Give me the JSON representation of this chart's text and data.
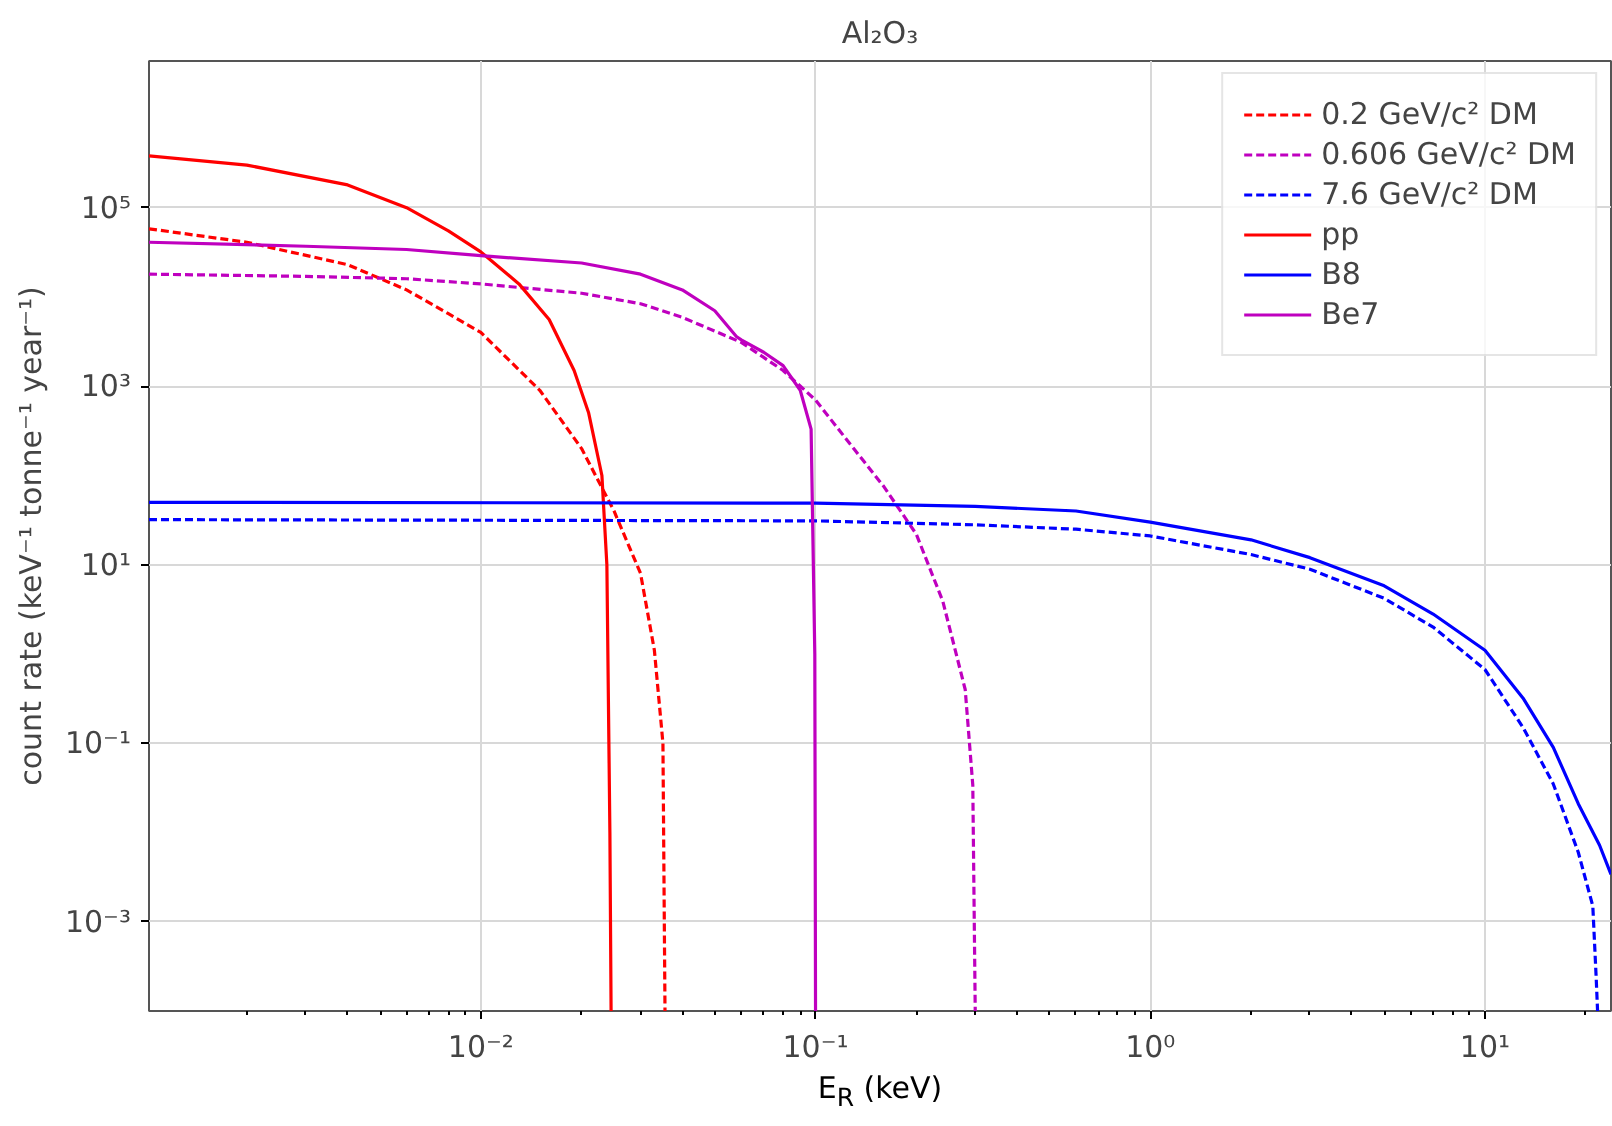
{
  "chart_data": {
    "type": "line",
    "title": "Al₂O₃",
    "xlabel": "E$_{R}$ (keV)",
    "ylabel": "count rate (keV⁻¹ tonne⁻¹ year⁻¹)",
    "log": "xy",
    "grid": true,
    "legend": "top right",
    "xlim": [
      0.00102,
      23.8
    ],
    "ylim": [
      0.0001,
      4400000
    ],
    "xticks": [
      {
        "value": 0.01,
        "label": "10⁻²"
      },
      {
        "value": 0.1,
        "label": "10⁻¹"
      },
      {
        "value": 1,
        "label": "10⁰"
      },
      {
        "value": 10,
        "label": "10¹"
      }
    ],
    "yticks": [
      {
        "value": 0.001,
        "label": "10⁻³"
      },
      {
        "value": 0.1,
        "label": "10⁻¹"
      },
      {
        "value": 10,
        "label": "10¹"
      },
      {
        "value": 1000,
        "label": "10³"
      },
      {
        "value": 100000,
        "label": "10⁵"
      }
    ],
    "series": [
      {
        "name": "0.2 GeV/c² DM",
        "color": "#ff0000",
        "line_style": "dashed",
        "x": [
          0.00102,
          0.002,
          0.004,
          0.006,
          0.008,
          0.01,
          0.015,
          0.02,
          0.025,
          0.03,
          0.033,
          0.035,
          0.0355
        ],
        "values": [
          58000,
          41000,
          23000,
          12000,
          6500,
          4000,
          900,
          200,
          40,
          8,
          1.1,
          0.1,
          0.0001
        ]
      },
      {
        "name": "0.606 GeV/c² DM",
        "color": "#bf00bf",
        "line_style": "dashed",
        "x": [
          0.00102,
          0.003,
          0.006,
          0.01,
          0.02,
          0.03,
          0.04,
          0.06,
          0.08,
          0.1,
          0.13,
          0.16,
          0.2,
          0.24,
          0.28,
          0.295,
          0.3
        ],
        "values": [
          18000,
          17000,
          16000,
          14000,
          11000,
          8400,
          5900,
          3100,
          1500,
          700,
          200,
          75,
          22,
          3.9,
          0.4,
          0.034,
          0.0001
        ]
      },
      {
        "name": "7.6 GeV/c² DM",
        "color": "#0000ff",
        "line_style": "dashed",
        "x": [
          0.00102,
          0.1,
          0.3,
          0.6,
          1,
          2,
          3,
          5,
          7,
          10,
          13,
          16,
          19,
          21,
          21.5,
          21.7
        ],
        "values": [
          32,
          31,
          28,
          25,
          21,
          13,
          8.9,
          4.2,
          2,
          0.67,
          0.15,
          0.035,
          0.006,
          0.0015,
          0.00023,
          0.0001
        ]
      },
      {
        "name": "pp",
        "color": "#ff0000",
        "line_style": "solid",
        "x": [
          0.00102,
          0.002,
          0.004,
          0.006,
          0.008,
          0.01,
          0.013,
          0.016,
          0.019,
          0.021,
          0.023,
          0.0238,
          0.0243,
          0.0245
        ],
        "values": [
          380000,
          300000,
          180000,
          100000,
          55000,
          32000,
          14000,
          5600,
          1500,
          500,
          100,
          10,
          0.01,
          0.0001
        ]
      },
      {
        "name": "B8",
        "color": "#0000ff",
        "line_style": "solid",
        "x": [
          0.00102,
          0.1,
          0.3,
          0.6,
          1,
          2,
          3,
          5,
          7,
          10,
          13,
          16,
          19,
          22,
          23.8
        ],
        "values": [
          50,
          49,
          45,
          40,
          30,
          19,
          12,
          5.8,
          2.8,
          1.1,
          0.32,
          0.09,
          0.021,
          0.0072,
          0.0034
        ]
      },
      {
        "name": "Be7",
        "color": "#bf00bf",
        "line_style": "solid",
        "x": [
          0.00102,
          0.003,
          0.006,
          0.01,
          0.02,
          0.03,
          0.04,
          0.05,
          0.058,
          0.06,
          0.07,
          0.08,
          0.09,
          0.097,
          0.0995,
          0.1
        ],
        "values": [
          41000,
          37000,
          34000,
          29000,
          24000,
          18000,
          12000,
          7000,
          3600,
          3300,
          2400,
          1700,
          900,
          330,
          1,
          0.0001
        ]
      }
    ]
  }
}
